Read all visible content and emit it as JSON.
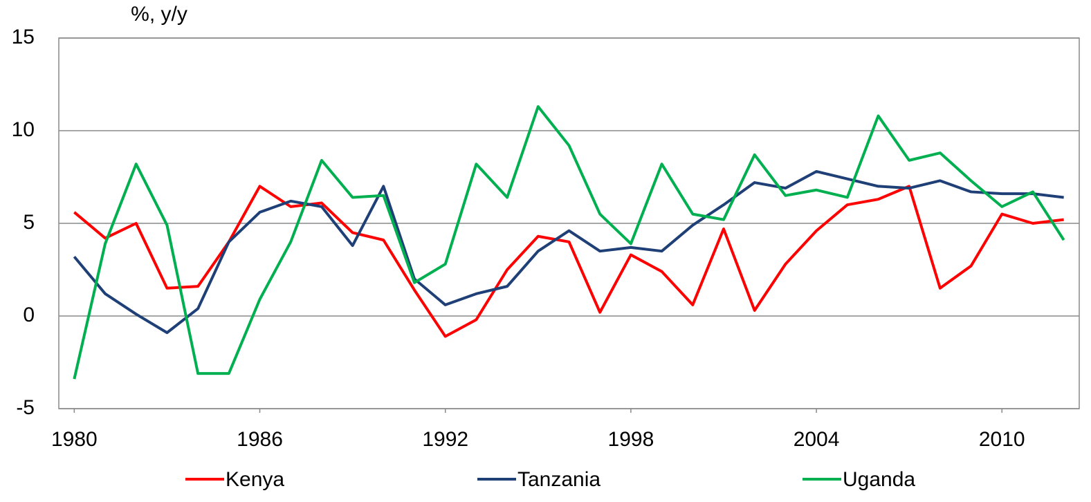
{
  "chart_data": {
    "type": "line",
    "y_label": "%, y/y",
    "x": [
      1980,
      1981,
      1982,
      1983,
      1984,
      1985,
      1986,
      1987,
      1988,
      1989,
      1990,
      1991,
      1992,
      1993,
      1994,
      1995,
      1996,
      1997,
      1998,
      1999,
      2000,
      2001,
      2002,
      2003,
      2004,
      2005,
      2006,
      2007,
      2008,
      2009,
      2010,
      2011,
      2012
    ],
    "xlim": [
      1979.5,
      2012.5
    ],
    "xticks": [
      1980,
      1986,
      1992,
      1998,
      2004,
      2010
    ],
    "ylim": [
      -5,
      15
    ],
    "yticks": [
      -5,
      0,
      5,
      10,
      15
    ],
    "grid": true,
    "legend": "bottom",
    "series": [
      {
        "name": "Kenya",
        "color": "#ff0000",
        "values": [
          5.6,
          4.2,
          5.0,
          1.5,
          1.6,
          4.0,
          7.0,
          5.9,
          6.1,
          4.5,
          4.1,
          1.4,
          -1.1,
          -0.2,
          2.5,
          4.3,
          4.0,
          0.2,
          3.3,
          2.4,
          0.6,
          4.7,
          0.3,
          2.8,
          4.6,
          6.0,
          6.3,
          7.0,
          1.5,
          2.7,
          5.5,
          5.0,
          5.2
        ]
      },
      {
        "name": "Tanzania",
        "color": "#1f3f77",
        "values": [
          3.2,
          1.2,
          0.1,
          -0.9,
          0.4,
          4.0,
          5.6,
          6.2,
          5.9,
          3.8,
          7.0,
          2.0,
          0.6,
          1.2,
          1.6,
          3.5,
          4.6,
          3.5,
          3.7,
          3.5,
          4.9,
          6.0,
          7.2,
          6.9,
          7.8,
          7.4,
          7.0,
          6.9,
          7.3,
          6.7,
          6.6,
          6.6,
          6.4
        ]
      },
      {
        "name": "Uganda",
        "color": "#00b050",
        "values": [
          -3.4,
          3.9,
          8.2,
          4.9,
          -3.1,
          -3.1,
          0.9,
          4.0,
          8.4,
          6.4,
          6.5,
          1.8,
          2.8,
          8.2,
          6.4,
          11.3,
          9.2,
          5.5,
          3.9,
          8.2,
          5.5,
          5.2,
          8.7,
          6.5,
          6.8,
          6.4,
          10.8,
          8.4,
          8.8,
          7.3,
          5.9,
          6.7,
          4.1
        ]
      }
    ]
  }
}
